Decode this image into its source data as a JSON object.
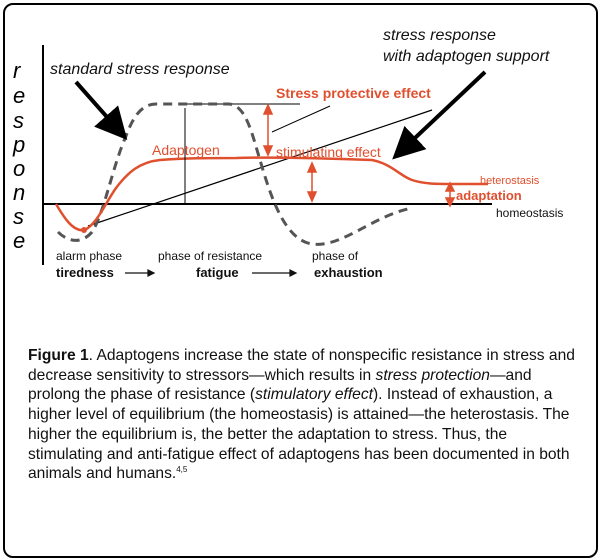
{
  "diagram": {
    "y_axis_letters": [
      "r",
      "e",
      "s",
      "p",
      "o",
      "n",
      "s",
      "e"
    ],
    "labels": {
      "standard": "standard stress response",
      "adaptogen_support_line1": "stress response",
      "adaptogen_support_line2": "with adaptogen support",
      "protective": "Stress protective effect",
      "adaptogen": "Adaptogen",
      "stimulating": "stimulating effect",
      "heterostasis": "heterostasis",
      "adaptation": "adaptation",
      "homeostasis": "homeostasis"
    },
    "phases": [
      {
        "name": "alarm phase",
        "stage": "tiredness"
      },
      {
        "name": "phase of resistance",
        "stage": "fatigue"
      },
      {
        "name": "phase of",
        "stage": "exhaustion"
      }
    ],
    "colors": {
      "red_curve": "#e0502f",
      "dashed_curve": "#555555",
      "axis": "#000000"
    }
  },
  "caption": {
    "label": "Figure 1",
    "t1": ". Adaptogens increase the state of nonspecific resistance in stress and decrease sensitivity to stressors—which results in ",
    "em1": "stress protection",
    "t2": "—and prolong the phase of resistance (",
    "em2": "stimulatory effect",
    "t3": "). Instead of exhaustion, a higher level of equilibrium (the homeostasis) is attained—the heterostasis. The higher the equilibrium is, the better the adaptation to stress. Thus, the stimulating and anti-fatigue effect of adaptogens has been documented in both animals and humans.",
    "refs": "4,5"
  }
}
